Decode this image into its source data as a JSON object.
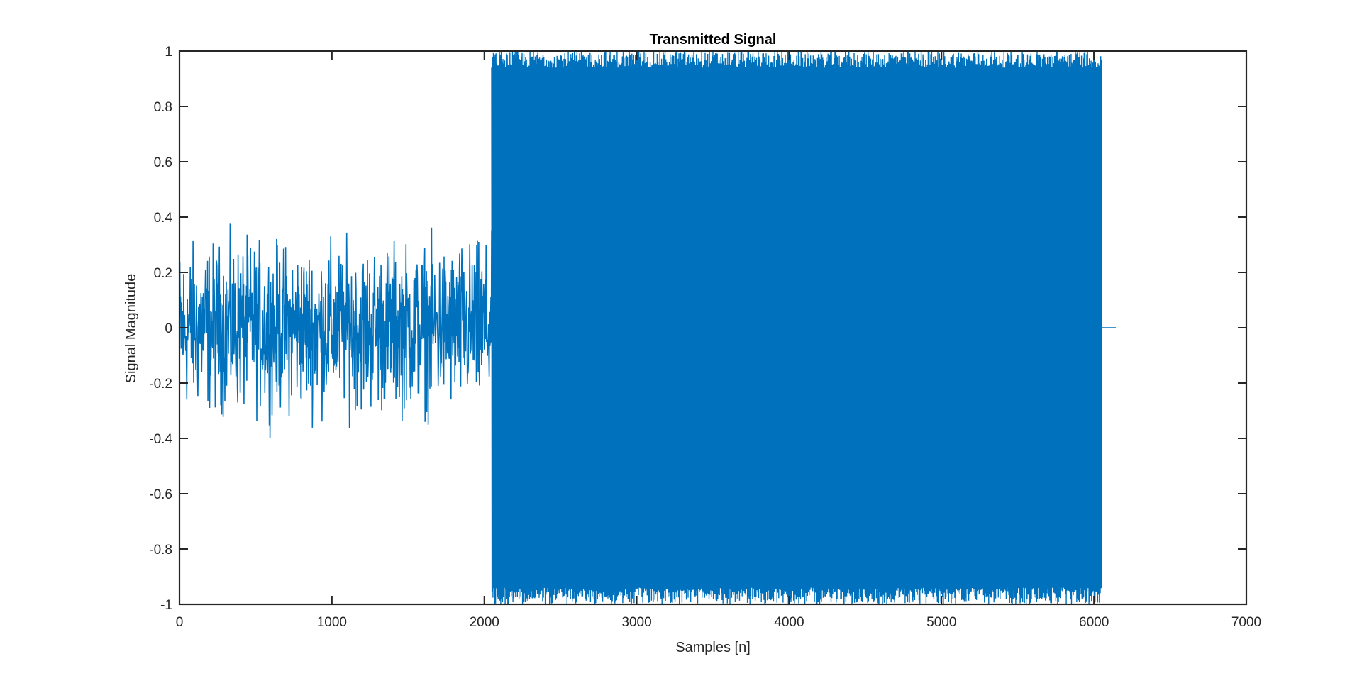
{
  "chart_data": {
    "type": "line",
    "title": "Transmitted Signal",
    "xlabel": "Samples [n]",
    "ylabel": "Signal Magnitude",
    "xlim": [
      0,
      7000
    ],
    "ylim": [
      -1,
      1
    ],
    "xticks": [
      0,
      1000,
      2000,
      3000,
      4000,
      5000,
      6000,
      7000
    ],
    "yticks": [
      -1,
      -0.8,
      -0.6,
      -0.4,
      -0.2,
      0,
      0.2,
      0.4,
      0.6,
      0.8,
      1
    ],
    "xtick_labels": [
      "0",
      "1000",
      "2000",
      "3000",
      "4000",
      "5000",
      "6000",
      "7000"
    ],
    "ytick_labels": [
      "-1",
      "-0.8",
      "-0.6",
      "-0.4",
      "-0.2",
      "0",
      "0.2",
      "0.4",
      "0.6",
      "0.8",
      "1"
    ],
    "grid": false,
    "legend": "none",
    "series_color": "#0072BD",
    "segments": [
      {
        "kind": "noise",
        "x_start": 0,
        "x_end": 2048,
        "peak_max": 0.48,
        "peak_min": -0.5
      },
      {
        "kind": "carrier",
        "x_start": 2048,
        "x_end": 6050,
        "amplitude": 1.0
      },
      {
        "kind": "zero",
        "x_start": 6050,
        "x_end": 6144,
        "value": 0
      }
    ]
  }
}
